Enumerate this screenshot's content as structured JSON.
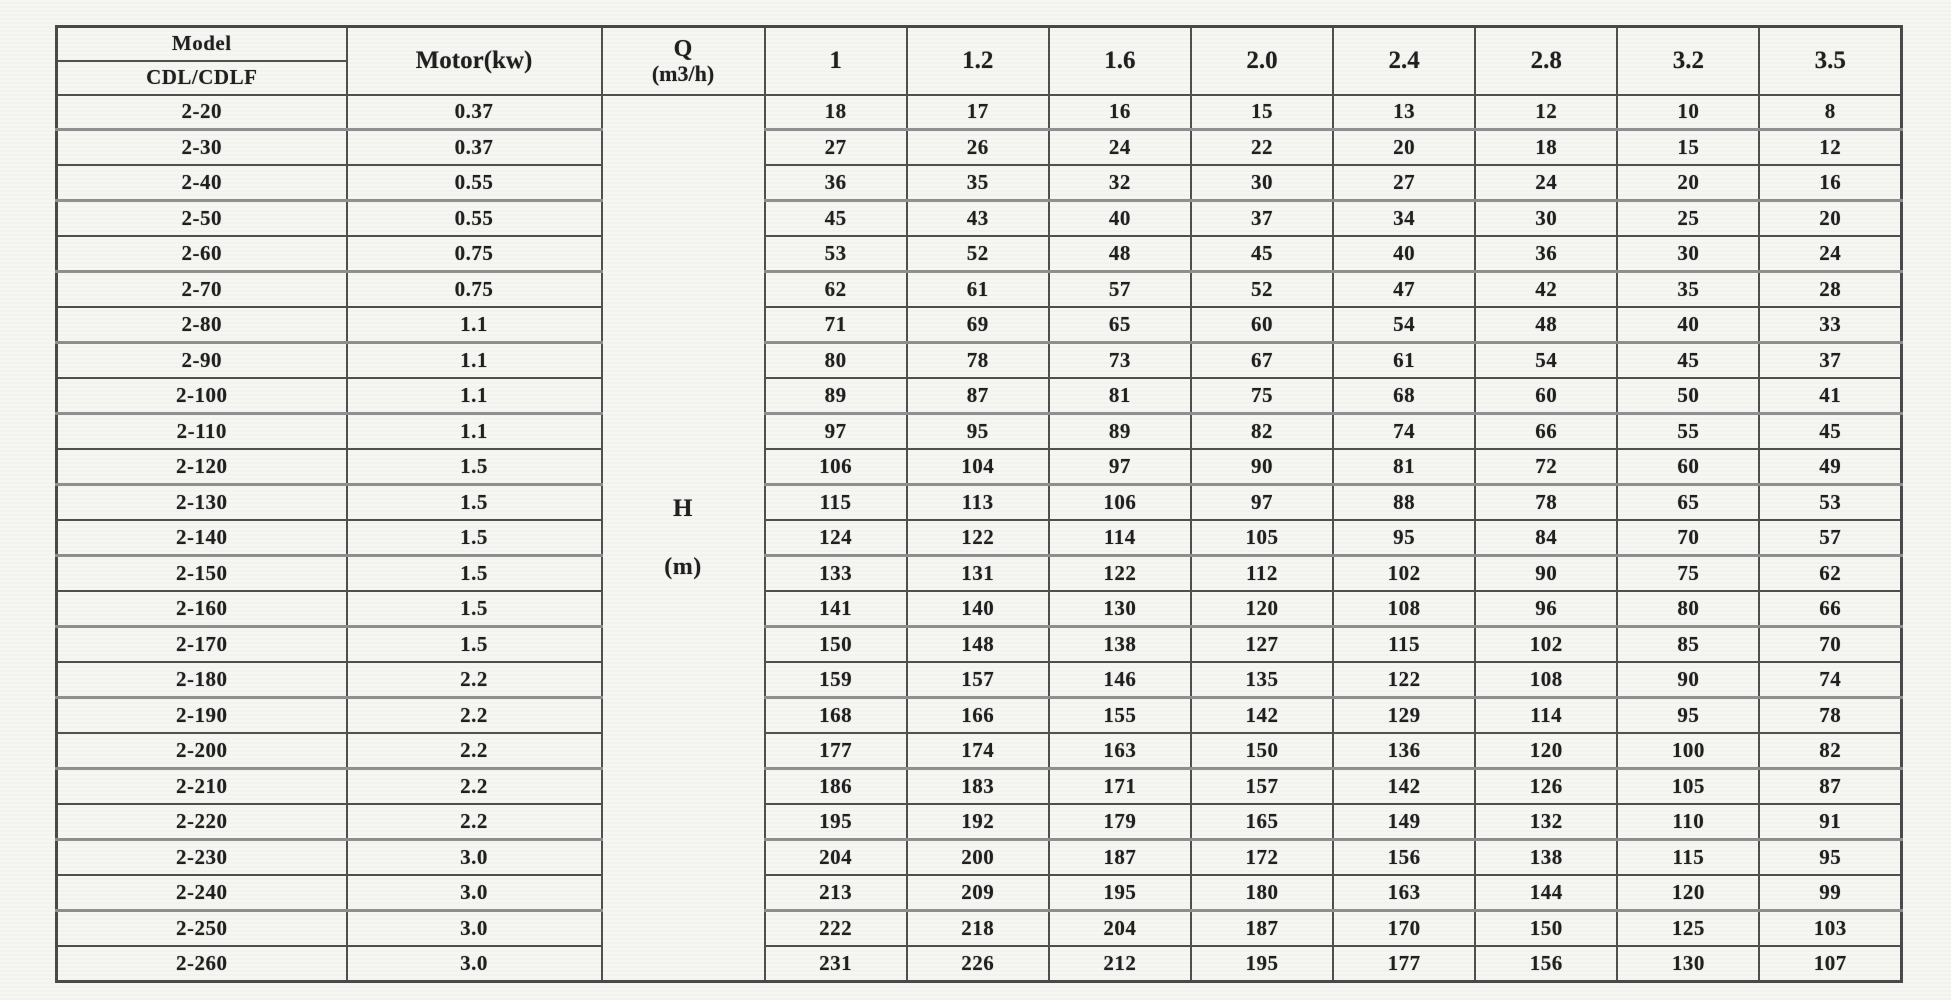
{
  "table": {
    "header": {
      "model_label": "Model",
      "model_sub_label": "CDL/CDLF",
      "motor_label": "Motor(kw)",
      "q_label": "Q",
      "q_unit": "(m3/h)",
      "flow_columns": [
        "1",
        "1.2",
        "1.6",
        "2.0",
        "2.4",
        "2.8",
        "3.2",
        "3.5"
      ]
    },
    "head_column": {
      "label": "H",
      "unit": "(m)"
    },
    "rows": [
      {
        "model": "2-20",
        "motor": "0.37",
        "values": [
          18,
          17,
          16,
          15,
          13,
          12,
          10,
          8
        ]
      },
      {
        "model": "2-30",
        "motor": "0.37",
        "values": [
          27,
          26,
          24,
          22,
          20,
          18,
          15,
          12
        ]
      },
      {
        "model": "2-40",
        "motor": "0.55",
        "values": [
          36,
          35,
          32,
          30,
          27,
          24,
          20,
          16
        ]
      },
      {
        "model": "2-50",
        "motor": "0.55",
        "values": [
          45,
          43,
          40,
          37,
          34,
          30,
          25,
          20
        ]
      },
      {
        "model": "2-60",
        "motor": "0.75",
        "values": [
          53,
          52,
          48,
          45,
          40,
          36,
          30,
          24
        ]
      },
      {
        "model": "2-70",
        "motor": "0.75",
        "values": [
          62,
          61,
          57,
          52,
          47,
          42,
          35,
          28
        ]
      },
      {
        "model": "2-80",
        "motor": "1.1",
        "values": [
          71,
          69,
          65,
          60,
          54,
          48,
          40,
          33
        ]
      },
      {
        "model": "2-90",
        "motor": "1.1",
        "values": [
          80,
          78,
          73,
          67,
          61,
          54,
          45,
          37
        ]
      },
      {
        "model": "2-100",
        "motor": "1.1",
        "values": [
          89,
          87,
          81,
          75,
          68,
          60,
          50,
          41
        ]
      },
      {
        "model": "2-110",
        "motor": "1.1",
        "values": [
          97,
          95,
          89,
          82,
          74,
          66,
          55,
          45
        ]
      },
      {
        "model": "2-120",
        "motor": "1.5",
        "values": [
          106,
          104,
          97,
          90,
          81,
          72,
          60,
          49
        ]
      },
      {
        "model": "2-130",
        "motor": "1.5",
        "values": [
          115,
          113,
          106,
          97,
          88,
          78,
          65,
          53
        ]
      },
      {
        "model": "2-140",
        "motor": "1.5",
        "values": [
          124,
          122,
          114,
          105,
          95,
          84,
          70,
          57
        ]
      },
      {
        "model": "2-150",
        "motor": "1.5",
        "values": [
          133,
          131,
          122,
          112,
          102,
          90,
          75,
          62
        ]
      },
      {
        "model": "2-160",
        "motor": "1.5",
        "values": [
          141,
          140,
          130,
          120,
          108,
          96,
          80,
          66
        ]
      },
      {
        "model": "2-170",
        "motor": "1.5",
        "values": [
          150,
          148,
          138,
          127,
          115,
          102,
          85,
          70
        ]
      },
      {
        "model": "2-180",
        "motor": "2.2",
        "values": [
          159,
          157,
          146,
          135,
          122,
          108,
          90,
          74
        ]
      },
      {
        "model": "2-190",
        "motor": "2.2",
        "values": [
          168,
          166,
          155,
          142,
          129,
          114,
          95,
          78
        ]
      },
      {
        "model": "2-200",
        "motor": "2.2",
        "values": [
          177,
          174,
          163,
          150,
          136,
          120,
          100,
          82
        ]
      },
      {
        "model": "2-210",
        "motor": "2.2",
        "values": [
          186,
          183,
          171,
          157,
          142,
          126,
          105,
          87
        ]
      },
      {
        "model": "2-220",
        "motor": "2.2",
        "values": [
          195,
          192,
          179,
          165,
          149,
          132,
          110,
          91
        ]
      },
      {
        "model": "2-230",
        "motor": "3.0",
        "values": [
          204,
          200,
          187,
          172,
          156,
          138,
          115,
          95
        ]
      },
      {
        "model": "2-240",
        "motor": "3.0",
        "values": [
          213,
          209,
          195,
          180,
          163,
          144,
          120,
          99
        ]
      },
      {
        "model": "2-250",
        "motor": "3.0",
        "values": [
          222,
          218,
          204,
          187,
          170,
          150,
          125,
          103
        ]
      },
      {
        "model": "2-260",
        "motor": "3.0",
        "values": [
          231,
          226,
          212,
          195,
          177,
          156,
          130,
          107
        ]
      }
    ]
  }
}
